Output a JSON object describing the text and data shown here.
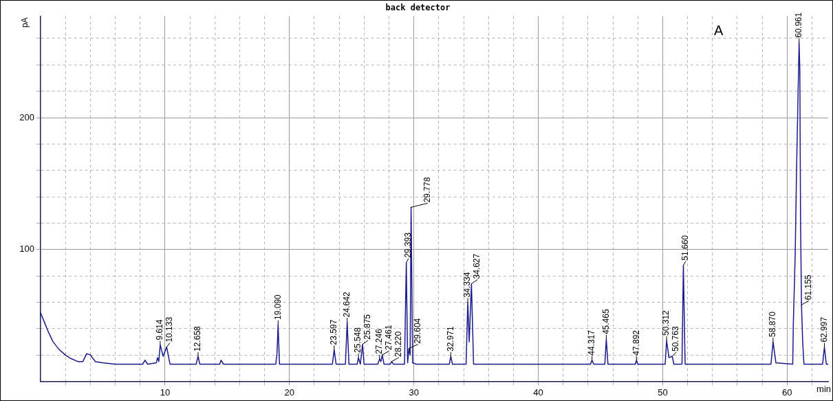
{
  "chart_data": {
    "type": "line",
    "title": "back detector",
    "xlabel": "min",
    "ylabel": "pA",
    "color": "#1a1a8c",
    "marker": "none",
    "line_style": "solid",
    "grid": true,
    "legend": false,
    "x": [
      0,
      0.3,
      0.6,
      1.0,
      1.5,
      2.0,
      2.3,
      2.5,
      3.0,
      3.4,
      3.7,
      4.0,
      4.4,
      5.0,
      6.0,
      8.2,
      8.4,
      8.6,
      9.3,
      9.4,
      9.5,
      9.614,
      9.85,
      10.133,
      10.4,
      12.5,
      12.658,
      12.8,
      14.4,
      14.5,
      14.7,
      18.9,
      19.0,
      19.09,
      19.2,
      23.45,
      23.597,
      23.75,
      24.5,
      24.642,
      24.78,
      25.45,
      25.548,
      25.7,
      25.875,
      26.0,
      27.1,
      27.246,
      27.35,
      27.461,
      27.6,
      28.1,
      28.22,
      28.35,
      29.25,
      29.393,
      29.5,
      29.604,
      29.7,
      29.778,
      29.9,
      30.2,
      32.85,
      32.971,
      33.1,
      34.2,
      34.334,
      34.45,
      34.627,
      34.8,
      44.2,
      44.317,
      44.45,
      45.35,
      45.465,
      45.6,
      47.8,
      47.892,
      48.0,
      50.2,
      50.312,
      50.5,
      50.763,
      50.9,
      51.55,
      51.66,
      51.8,
      58.7,
      58.87,
      59.1,
      60.45,
      60.5,
      60.65,
      60.75,
      60.86,
      60.961,
      61.02,
      61.08,
      61.155,
      61.25,
      61.35,
      62.85,
      62.997,
      63.15,
      63.3
    ],
    "values": [
      52,
      45,
      38,
      30,
      24,
      20,
      18,
      17,
      15,
      15,
      21,
      20,
      15,
      14,
      13,
      13,
      16,
      13,
      14,
      18,
      15,
      27.6,
      19,
      26,
      13,
      13,
      19,
      13,
      13,
      16,
      13,
      13,
      21,
      43,
      13,
      13,
      24,
      13,
      13,
      45,
      13,
      13,
      18,
      13,
      28,
      13,
      13,
      17,
      15,
      20,
      13,
      13,
      15,
      13,
      13,
      90,
      14,
      25,
      20,
      132,
      14,
      13,
      13,
      19,
      13,
      13,
      60,
      30,
      74,
      13,
      13,
      16,
      13,
      13,
      32,
      13,
      13,
      16,
      13,
      13,
      31,
      18,
      19,
      13,
      13,
      88,
      13,
      13,
      30,
      14,
      13,
      44,
      97,
      156,
      209,
      257,
      237,
      120,
      58,
      30,
      13,
      13,
      26,
      13,
      13
    ],
    "xlim": [
      0,
      63.3
    ],
    "ylim": [
      0,
      277
    ],
    "xticks": [
      {
        "value": 2,
        "label": null
      },
      {
        "value": 4,
        "label": null
      },
      {
        "value": 6,
        "label": null
      },
      {
        "value": 8,
        "label": null
      },
      10,
      {
        "value": 12,
        "label": null
      },
      {
        "value": 14,
        "label": null
      },
      {
        "value": 16,
        "label": null
      },
      {
        "value": 18,
        "label": null
      },
      20,
      {
        "value": 22,
        "label": null
      },
      {
        "value": 24,
        "label": null
      },
      {
        "value": 26,
        "label": null
      },
      {
        "value": 28,
        "label": null
      },
      30,
      {
        "value": 32,
        "label": null
      },
      {
        "value": 34,
        "label": null
      },
      {
        "value": 36,
        "label": null
      },
      {
        "value": 38,
        "label": null
      },
      40,
      {
        "value": 42,
        "label": null
      },
      {
        "value": 44,
        "label": null
      },
      {
        "value": 46,
        "label": null
      },
      {
        "value": 48,
        "label": null
      },
      50,
      {
        "value": 52,
        "label": null
      },
      {
        "value": 54,
        "label": null
      },
      {
        "value": 56,
        "label": null
      },
      {
        "value": 58,
        "label": null
      },
      60,
      {
        "value": 62,
        "label": null
      }
    ],
    "yticks": [
      {
        "value": 20,
        "label": null
      },
      {
        "value": 40,
        "label": null
      },
      {
        "value": 60,
        "label": null
      },
      {
        "value": 80,
        "label": null
      },
      100,
      {
        "value": 120,
        "label": null
      },
      {
        "value": 140,
        "label": null
      },
      {
        "value": 160,
        "label": null
      },
      {
        "value": 180,
        "label": null
      },
      200,
      {
        "value": 220,
        "label": null
      },
      {
        "value": 240,
        "label": null
      },
      {
        "value": 260,
        "label": null
      }
    ],
    "annotations": [
      "A",
      {
        "text": "9.614",
        "x": 9.614,
        "y": 27.6
      },
      {
        "text": "10.133",
        "x": 10.133,
        "y": 26
      },
      {
        "text": "12.658",
        "x": 12.658,
        "y": 19
      },
      {
        "text": "19.090",
        "x": 19.09,
        "y": 43
      },
      {
        "text": "23.597",
        "x": 23.597,
        "y": 24
      },
      {
        "text": "24.642",
        "x": 24.642,
        "y": 45
      },
      {
        "text": "25.548",
        "x": 25.548,
        "y": 18
      },
      {
        "text": "25.875",
        "x": 25.875,
        "y": 28
      },
      {
        "text": "27.246",
        "x": 27.246,
        "y": 17
      },
      {
        "text": "27.461",
        "x": 27.461,
        "y": 20
      },
      {
        "text": "28.220",
        "x": 28.22,
        "y": 15
      },
      {
        "text": "29.393",
        "x": 29.393,
        "y": 90
      },
      {
        "text": "29.604",
        "x": 29.604,
        "y": 25
      },
      {
        "text": "29.778",
        "x": 29.778,
        "y": 132
      },
      {
        "text": "32.971",
        "x": 32.971,
        "y": 19
      },
      {
        "text": "34.334",
        "x": 34.334,
        "y": 60
      },
      {
        "text": "34.627",
        "x": 34.627,
        "y": 74
      },
      {
        "text": "44.317",
        "x": 44.317,
        "y": 16
      },
      {
        "text": "45.465",
        "x": 45.465,
        "y": 32
      },
      {
        "text": "47.892",
        "x": 47.892,
        "y": 16
      },
      {
        "text": "50.312",
        "x": 50.312,
        "y": 31
      },
      {
        "text": "50.763",
        "x": 50.763,
        "y": 19
      },
      {
        "text": "51.660",
        "x": 51.66,
        "y": 88
      },
      {
        "text": "58.870",
        "x": 58.87,
        "y": 30
      },
      {
        "text": "60.961",
        "x": 60.961,
        "y": 257
      },
      {
        "text": "61.155",
        "x": 61.155,
        "y": 58
      },
      {
        "text": "62.997",
        "x": 62.997,
        "y": 26
      }
    ]
  }
}
